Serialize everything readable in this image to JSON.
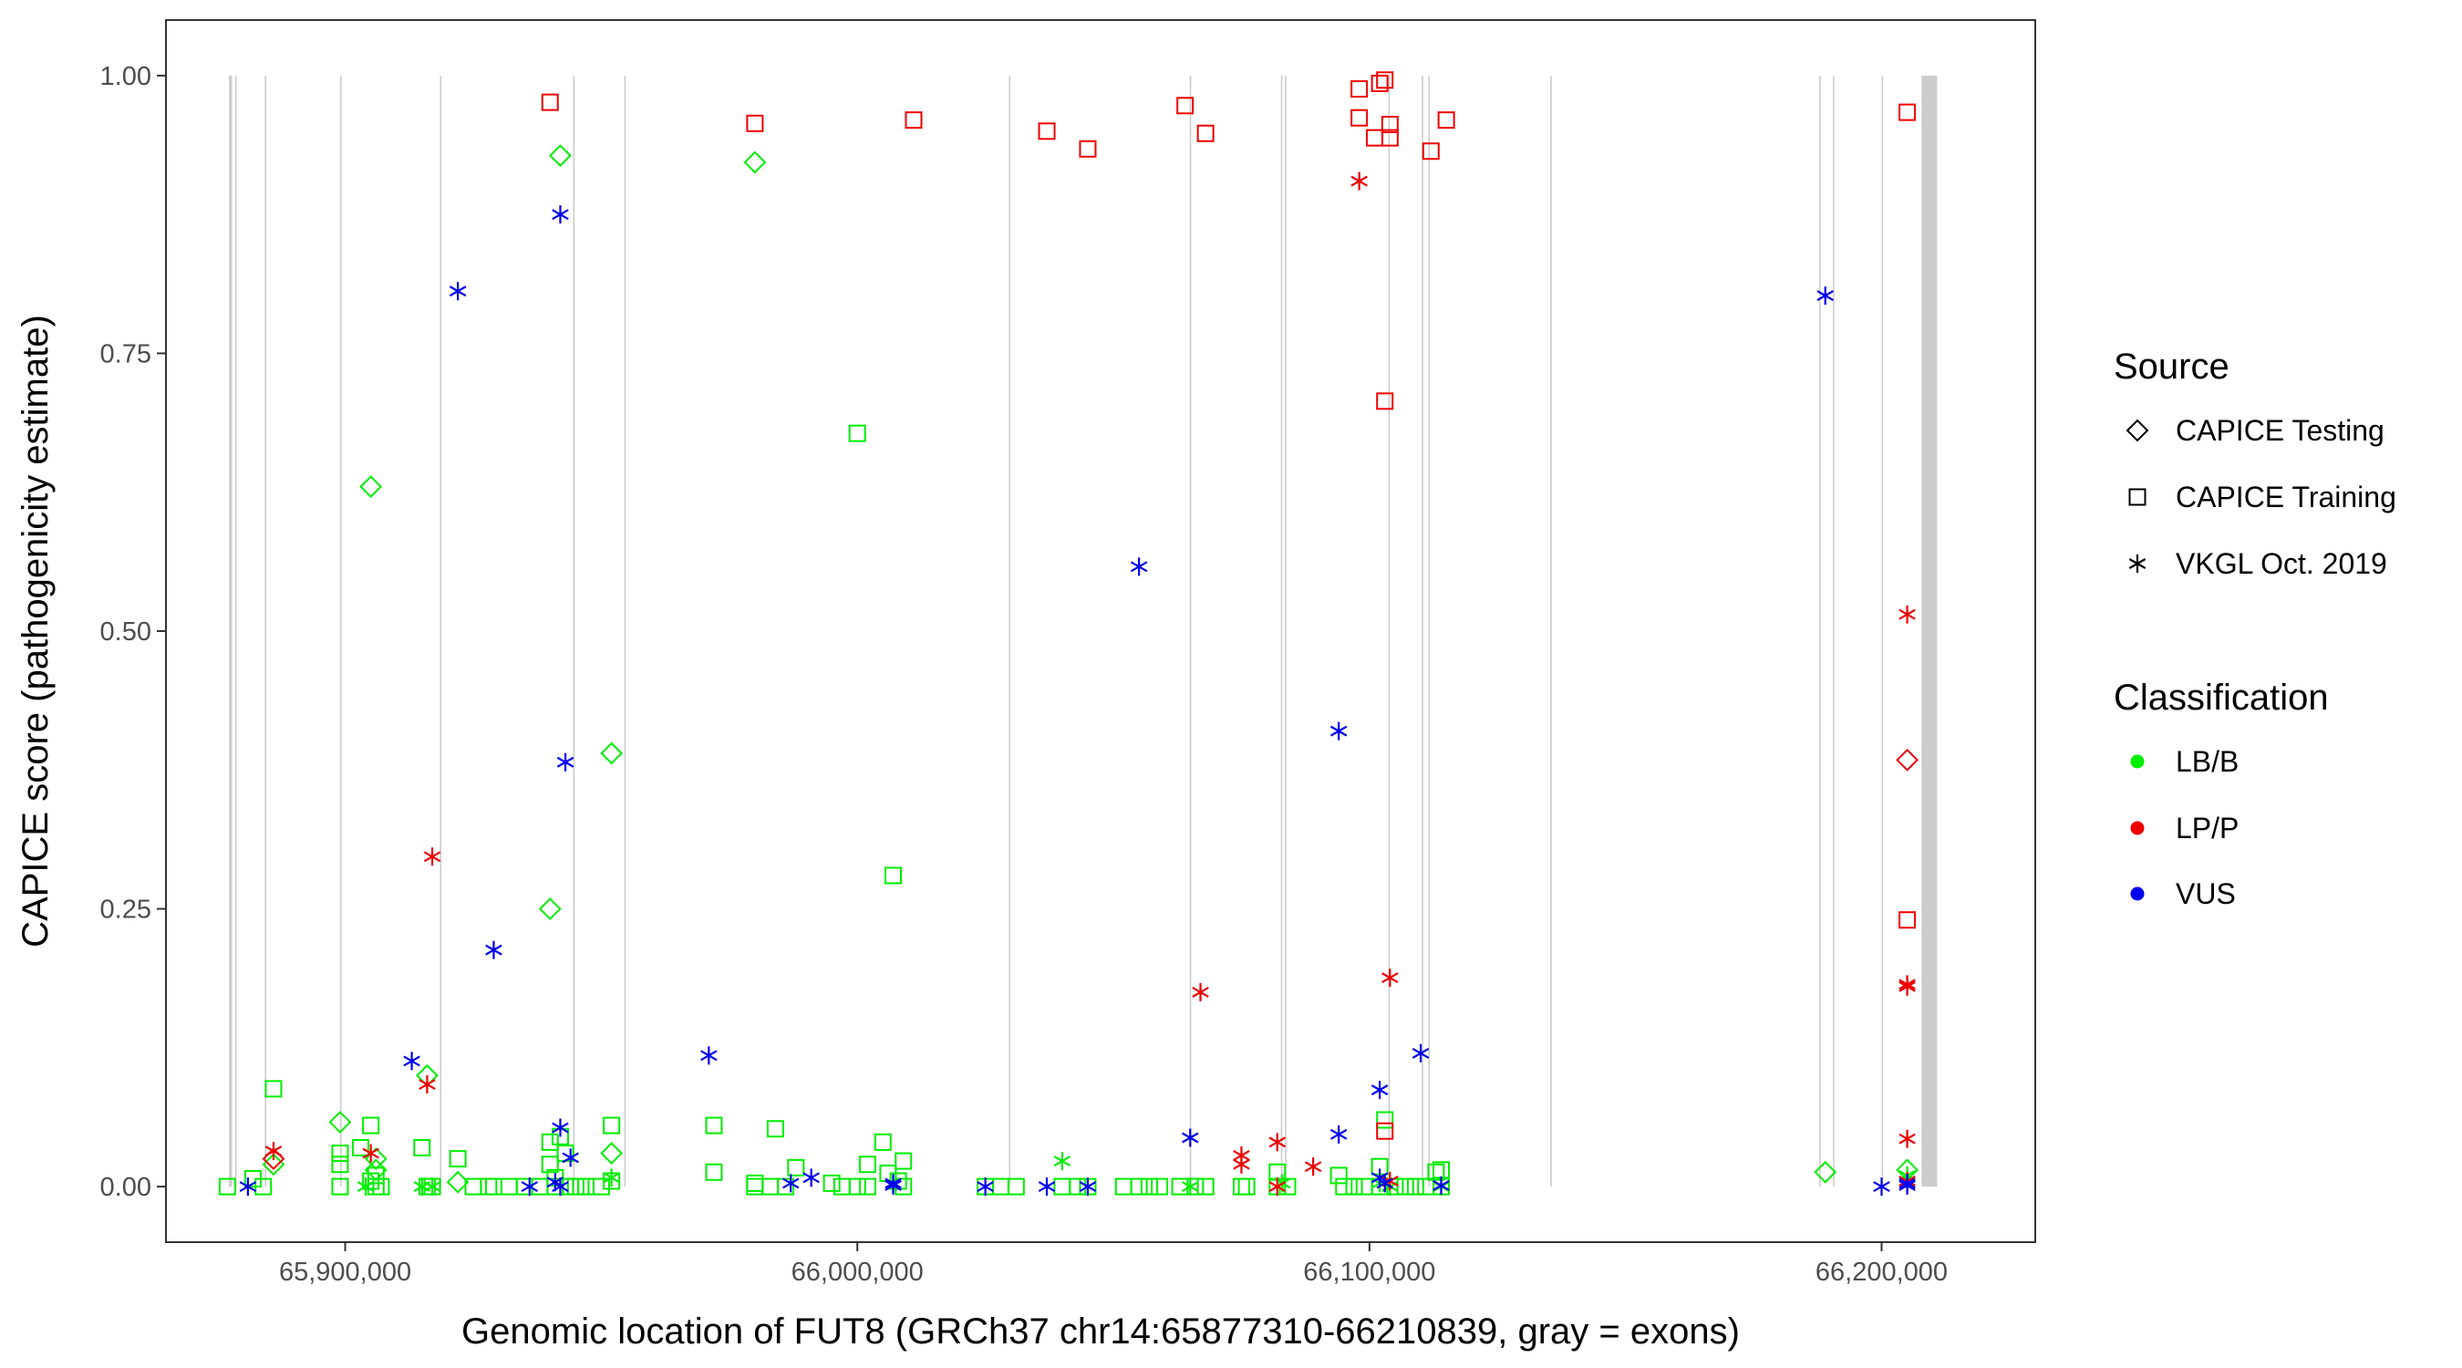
{
  "chart_data": {
    "type": "scatter",
    "xlabel": "Genomic location of FUT8 (GRCh37 chr14:65877310-66210839, gray = exons)",
    "ylabel": "CAPICE score (pathogenicity estimate)",
    "xlim": [
      65865000,
      66230000
    ],
    "ylim": [
      -0.05,
      1.05
    ],
    "x_ticks": [
      65900000,
      66000000,
      66100000,
      66200000
    ],
    "x_tick_labels": [
      "65,900,000",
      "66,000,000",
      "66,100,000",
      "66,200,000"
    ],
    "y_ticks": [
      0,
      0.25,
      0.5,
      0.75,
      1
    ],
    "y_tick_labels": [
      "0.00",
      "0.25",
      "0.50",
      "0.75",
      "1.00"
    ],
    "grid": false,
    "legend_position": "right",
    "exons": [
      [
        65877310,
        65877900
      ],
      [
        65878500,
        65878700
      ],
      [
        65884300,
        65884400
      ],
      [
        65899000,
        65899100
      ],
      [
        65918500,
        65918700
      ],
      [
        65944500,
        65944700
      ],
      [
        65954500,
        65954700
      ],
      [
        66029600,
        66029800
      ],
      [
        66064900,
        66065000
      ],
      [
        66082700,
        66083000
      ],
      [
        66083500,
        66083700
      ],
      [
        66103700,
        66103900
      ],
      [
        66110200,
        66110400
      ],
      [
        66111500,
        66111700
      ],
      [
        66135300,
        66135400
      ],
      [
        66187800,
        66188000
      ],
      [
        66190500,
        66190700
      ],
      [
        66200000,
        66200100
      ],
      [
        66207800,
        66210839
      ]
    ],
    "colors": {
      "LB/B": "#00ee00",
      "LP/P": "#ee0000",
      "VUS": "#0000ee"
    },
    "legend": {
      "source_title": "Source",
      "source_items": [
        {
          "shape": "diamond",
          "label": "CAPICE Testing"
        },
        {
          "shape": "square",
          "label": "CAPICE Training"
        },
        {
          "shape": "asterisk",
          "label": "VKGL Oct. 2019"
        }
      ],
      "class_title": "Classification",
      "class_items": [
        {
          "key": "LB/B",
          "label": "LB/B"
        },
        {
          "key": "LP/P",
          "label": "LP/P"
        },
        {
          "key": "VUS",
          "label": "VUS"
        }
      ]
    },
    "series": [
      {
        "source": "CAPICE Testing",
        "classification": "LB/B",
        "points": [
          [
            65886000,
            0.02
          ],
          [
            65899000,
            0.058
          ],
          [
            65905000,
            0.63
          ],
          [
            65906000,
            0.025
          ],
          [
            65906000,
            0.015
          ],
          [
            65916000,
            0.1
          ],
          [
            65922000,
            0.004
          ],
          [
            65940000,
            0.25
          ],
          [
            65942000,
            0.928
          ],
          [
            65952000,
            0.39
          ],
          [
            65952000,
            0.03
          ],
          [
            65980000,
            0.922
          ],
          [
            66189000,
            0.013
          ],
          [
            66205000,
            0.015
          ]
        ]
      },
      {
        "source": "CAPICE Testing",
        "classification": "LP/P",
        "points": [
          [
            65886000,
            0.025
          ],
          [
            66205000,
            0.384
          ]
        ]
      },
      {
        "source": "CAPICE Training",
        "classification": "LB/B",
        "points": [
          [
            65877000,
            0
          ],
          [
            65882000,
            0.007
          ],
          [
            65884000,
            0
          ],
          [
            65886000,
            0.088
          ],
          [
            65899000,
            0
          ],
          [
            65899000,
            0.02
          ],
          [
            65899000,
            0.03
          ],
          [
            65903000,
            0.035
          ],
          [
            65905000,
            0.055
          ],
          [
            65905000,
            0.005
          ],
          [
            65906000,
            0.01
          ],
          [
            65906000,
            0
          ],
          [
            65907000,
            0
          ],
          [
            65915000,
            0.035
          ],
          [
            65916000,
            0
          ],
          [
            65917000,
            0
          ],
          [
            65922000,
            0.025
          ],
          [
            65925000,
            0
          ],
          [
            65928000,
            0
          ],
          [
            65929000,
            0
          ],
          [
            65932000,
            0
          ],
          [
            65935000,
            0
          ],
          [
            65938000,
            0
          ],
          [
            65940000,
            0.02
          ],
          [
            65940000,
            0.04
          ],
          [
            65941000,
            0.008
          ],
          [
            65941000,
            0
          ],
          [
            65942000,
            0.045
          ],
          [
            65943000,
            0.03
          ],
          [
            65944000,
            0
          ],
          [
            65945000,
            0
          ],
          [
            65946000,
            0
          ],
          [
            65947000,
            0
          ],
          [
            65950000,
            0
          ],
          [
            65952000,
            0.055
          ],
          [
            65952000,
            0.005
          ],
          [
            65972000,
            0.055
          ],
          [
            65972000,
            0.013
          ],
          [
            65980000,
            0.003
          ],
          [
            65980000,
            0
          ],
          [
            65983000,
            0
          ],
          [
            65984000,
            0.052
          ],
          [
            65986000,
            0
          ],
          [
            65988000,
            0.017
          ],
          [
            65995000,
            0.003
          ],
          [
            65997000,
            0
          ],
          [
            66000000,
            0.678
          ],
          [
            66000000,
            0
          ],
          [
            66002000,
            0.02
          ],
          [
            66002000,
            0
          ],
          [
            66005000,
            0.04
          ],
          [
            66006000,
            0.012
          ],
          [
            66007000,
            0.28
          ],
          [
            66008000,
            0.005
          ],
          [
            66009000,
            0.023
          ],
          [
            66009000,
            0
          ],
          [
            66025000,
            0
          ],
          [
            66028000,
            0
          ],
          [
            66031000,
            0
          ],
          [
            66040000,
            0
          ],
          [
            66043000,
            0
          ],
          [
            66045000,
            0
          ],
          [
            66052000,
            0
          ],
          [
            66055000,
            0
          ],
          [
            66057000,
            0
          ],
          [
            66059000,
            0
          ],
          [
            66063000,
            0
          ],
          [
            66066000,
            0
          ],
          [
            66068000,
            0
          ],
          [
            66075000,
            0
          ],
          [
            66076000,
            0
          ],
          [
            66082000,
            0.013
          ],
          [
            66082000,
            0
          ],
          [
            66084000,
            0
          ],
          [
            66094000,
            0.01
          ],
          [
            66095000,
            0
          ],
          [
            66097000,
            0
          ],
          [
            66099000,
            0
          ],
          [
            66102000,
            0.018
          ],
          [
            66102000,
            0
          ],
          [
            66103000,
            0.06
          ],
          [
            66105000,
            0
          ],
          [
            66107000,
            0
          ],
          [
            66109000,
            0
          ],
          [
            66111000,
            0
          ],
          [
            66113000,
            0.013
          ],
          [
            66114000,
            0.015
          ],
          [
            66114000,
            0
          ]
        ]
      },
      {
        "source": "CAPICE Training",
        "classification": "LP/P",
        "points": [
          [
            65940000,
            0.976
          ],
          [
            65980000,
            0.957
          ],
          [
            66011000,
            0.96
          ],
          [
            66037000,
            0.95
          ],
          [
            66045000,
            0.934
          ],
          [
            66064000,
            0.973
          ],
          [
            66068000,
            0.948
          ],
          [
            66098000,
            0.962
          ],
          [
            66098000,
            0.988
          ],
          [
            66101000,
            0.944
          ],
          [
            66102000,
            0.993
          ],
          [
            66103000,
            0.996
          ],
          [
            66103000,
            0.707
          ],
          [
            66104000,
            0.956
          ],
          [
            66104000,
            0.944
          ],
          [
            66103000,
            0.05
          ],
          [
            66112000,
            0.932
          ],
          [
            66115000,
            0.96
          ],
          [
            66205000,
            0.967
          ],
          [
            66205000,
            0.24
          ]
        ]
      },
      {
        "source": "VKGL Oct. 2019",
        "classification": "LB/B",
        "points": [
          [
            65904000,
            0
          ],
          [
            65915000,
            0
          ],
          [
            65917000,
            0
          ],
          [
            65952000,
            0.008
          ],
          [
            66040000,
            0.023
          ],
          [
            66065000,
            0
          ],
          [
            66083000,
            0.003
          ],
          [
            66102000,
            0.003
          ],
          [
            66104000,
            0
          ],
          [
            66114000,
            0
          ],
          [
            66205000,
            0.01
          ]
        ]
      },
      {
        "source": "VKGL Oct. 2019",
        "classification": "LP/P",
        "points": [
          [
            65886000,
            0.032
          ],
          [
            65905000,
            0.03
          ],
          [
            65916000,
            0.092
          ],
          [
            65917000,
            0.297
          ],
          [
            66067000,
            0.175
          ],
          [
            66075000,
            0.028
          ],
          [
            66075000,
            0.02
          ],
          [
            66082000,
            0.04
          ],
          [
            66082000,
            0
          ],
          [
            66089000,
            0.018
          ],
          [
            66098000,
            0.905
          ],
          [
            66104000,
            0.188
          ],
          [
            66104000,
            0.005
          ],
          [
            66205000,
            0.515
          ],
          [
            66205000,
            0.182
          ],
          [
            66205000,
            0.18
          ],
          [
            66205000,
            0.043
          ],
          [
            66205000,
            0.005
          ]
        ]
      },
      {
        "source": "VKGL Oct. 2019",
        "classification": "VUS",
        "points": [
          [
            65881000,
            0
          ],
          [
            65913000,
            0.113
          ],
          [
            65922000,
            0.806
          ],
          [
            65929000,
            0.213
          ],
          [
            65936000,
            0
          ],
          [
            65941000,
            0.004
          ],
          [
            65942000,
            0.875
          ],
          [
            65942000,
            0.053
          ],
          [
            65943000,
            0.382
          ],
          [
            65944000,
            0.026
          ],
          [
            65942000,
            0
          ],
          [
            65971000,
            0.118
          ],
          [
            65987000,
            0.003
          ],
          [
            65991000,
            0.008
          ],
          [
            66007000,
            0.003
          ],
          [
            66007000,
            0.001
          ],
          [
            66025000,
            0
          ],
          [
            66037000,
            0
          ],
          [
            66045000,
            0
          ],
          [
            66055000,
            0.558
          ],
          [
            66065000,
            0.044
          ],
          [
            66094000,
            0.41
          ],
          [
            66094000,
            0.047
          ],
          [
            66102000,
            0.087
          ],
          [
            66102000,
            0.008
          ],
          [
            66103000,
            0.003
          ],
          [
            66110000,
            0.12
          ],
          [
            66114000,
            0.001
          ],
          [
            66189000,
            0.802
          ],
          [
            66200000,
            0
          ],
          [
            66205000,
            0.003
          ],
          [
            66205000,
            0.001
          ]
        ]
      }
    ]
  }
}
